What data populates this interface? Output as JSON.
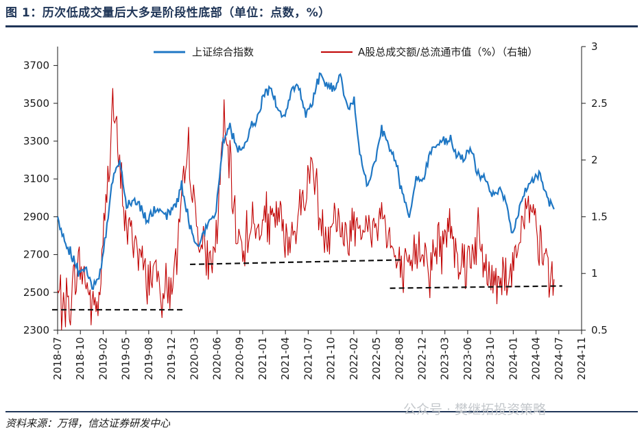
{
  "figure": {
    "title": "图 1：历次低成交量后大多是阶段性底部（单位：点数，%）",
    "source": "资料来源：万得，信达证券研发中心",
    "watermark": "公众号 · 樊继拓投资策略"
  },
  "chart_data": {
    "type": "line",
    "title": "",
    "xlabel": "",
    "ylabel": "",
    "legend_placement": "top",
    "grid": false,
    "x_tick_labels": [
      "2018-07",
      "2018-10",
      "2019-02",
      "2019-05",
      "2019-08",
      "2019-12",
      "2020-03",
      "2020-06",
      "2020-09",
      "2021-01",
      "2021-04",
      "2021-07",
      "2021-10",
      "2022-02",
      "2022-05",
      "2022-08",
      "2022-12",
      "2023-03",
      "2023-06",
      "2023-10",
      "2024-01",
      "2024-04",
      "2024-07",
      "2024-11"
    ],
    "y_left_ticks": [
      2300,
      2500,
      2700,
      2900,
      3100,
      3300,
      3500,
      3700
    ],
    "y_right_ticks": [
      "0.5",
      "1",
      "1.5",
      "2",
      "2.5",
      "3"
    ],
    "y_left_range": [
      2300,
      3800
    ],
    "y_right_range": [
      0.5,
      3.0
    ],
    "series": [
      {
        "name": "上证综合指数",
        "axis": "left",
        "color": "#1f77c4",
        "x": [
          "2018-07",
          "2018-08",
          "2018-09",
          "2018-10",
          "2018-11",
          "2018-12",
          "2019-01",
          "2019-02",
          "2019-03",
          "2019-04",
          "2019-05",
          "2019-06",
          "2019-07",
          "2019-08",
          "2019-09",
          "2019-10",
          "2019-11",
          "2019-12",
          "2020-01",
          "2020-02",
          "2020-03",
          "2020-04",
          "2020-05",
          "2020-06",
          "2020-07",
          "2020-08",
          "2020-09",
          "2020-10",
          "2020-11",
          "2020-12",
          "2021-01",
          "2021-02",
          "2021-03",
          "2021-04",
          "2021-05",
          "2021-06",
          "2021-07",
          "2021-08",
          "2021-09",
          "2021-10",
          "2021-11",
          "2021-12",
          "2022-01",
          "2022-02",
          "2022-03",
          "2022-04",
          "2022-05",
          "2022-06",
          "2022-07",
          "2022-08",
          "2022-09",
          "2022-10",
          "2022-11",
          "2022-12",
          "2023-01",
          "2023-02",
          "2023-03",
          "2023-04",
          "2023-05",
          "2023-06",
          "2023-07",
          "2023-08",
          "2023-09",
          "2023-10",
          "2023-11",
          "2023-12",
          "2024-01",
          "2024-02",
          "2024-03",
          "2024-04",
          "2024-05",
          "2024-06",
          "2024-07"
        ],
        "values": [
          2880,
          2770,
          2700,
          2610,
          2620,
          2530,
          2590,
          2800,
          3110,
          3200,
          2960,
          2990,
          2960,
          2880,
          2940,
          2920,
          2900,
          2960,
          3060,
          2880,
          2750,
          2800,
          2860,
          2930,
          3300,
          3390,
          3250,
          3240,
          3380,
          3420,
          3560,
          3580,
          3460,
          3440,
          3590,
          3580,
          3440,
          3520,
          3650,
          3600,
          3570,
          3640,
          3470,
          3500,
          3200,
          3050,
          3180,
          3380,
          3260,
          3210,
          3020,
          2910,
          3100,
          3090,
          3240,
          3280,
          3290,
          3300,
          3220,
          3210,
          3250,
          3120,
          3110,
          3020,
          3040,
          2980,
          2800,
          2940,
          3040,
          3100,
          3120,
          3000,
          2940
        ]
      },
      {
        "name": "A股总成交额/总流通市值（%）（右轴）",
        "axis": "right",
        "color": "#c00000",
        "x": [
          "2018-07",
          "2018-08",
          "2018-09",
          "2018-10",
          "2018-11",
          "2018-12",
          "2019-01",
          "2019-02",
          "2019-03",
          "2019-04",
          "2019-05",
          "2019-06",
          "2019-07",
          "2019-08",
          "2019-09",
          "2019-10",
          "2019-11",
          "2019-12",
          "2020-01",
          "2020-02",
          "2020-03",
          "2020-04",
          "2020-05",
          "2020-06",
          "2020-07",
          "2020-08",
          "2020-09",
          "2020-10",
          "2020-11",
          "2020-12",
          "2021-01",
          "2021-02",
          "2021-03",
          "2021-04",
          "2021-05",
          "2021-06",
          "2021-07",
          "2021-08",
          "2021-09",
          "2021-10",
          "2021-11",
          "2021-12",
          "2022-01",
          "2022-02",
          "2022-03",
          "2022-04",
          "2022-05",
          "2022-06",
          "2022-07",
          "2022-08",
          "2022-09",
          "2022-10",
          "2022-11",
          "2022-12",
          "2023-01",
          "2023-02",
          "2023-03",
          "2023-04",
          "2023-05",
          "2023-06",
          "2023-07",
          "2023-08",
          "2023-09",
          "2023-10",
          "2023-11",
          "2023-12",
          "2024-01",
          "2024-02",
          "2024-03",
          "2024-04",
          "2024-05",
          "2024-06",
          "2024-07"
        ],
        "values": [
          0.82,
          0.72,
          0.78,
          1.1,
          0.95,
          0.72,
          0.74,
          1.6,
          2.5,
          1.9,
          1.4,
          1.35,
          1.15,
          0.95,
          1.05,
          0.88,
          0.85,
          1.0,
          1.55,
          2.1,
          1.45,
          1.2,
          1.05,
          1.25,
          2.3,
          1.9,
          1.35,
          1.25,
          1.45,
          1.35,
          1.5,
          1.4,
          1.55,
          1.25,
          1.35,
          1.5,
          1.75,
          2.0,
          1.5,
          1.35,
          1.5,
          1.45,
          1.25,
          1.5,
          1.45,
          1.35,
          1.4,
          1.55,
          1.35,
          1.1,
          0.98,
          1.0,
          1.2,
          1.25,
          1.05,
          1.25,
          1.25,
          1.45,
          1.2,
          1.1,
          1.2,
          1.3,
          1.05,
          0.95,
          1.0,
          0.98,
          1.05,
          1.35,
          1.55,
          1.45,
          1.2,
          1.1,
          0.95
        ]
      }
    ],
    "annotations": [
      {
        "type": "dashed-line",
        "axis": "right",
        "x": [
          "2018-07",
          "2019-12"
        ],
        "y": [
          0.68,
          0.68
        ]
      },
      {
        "type": "dashed-line",
        "axis": "right",
        "x": [
          "2020-03",
          "2022-08"
        ],
        "y": [
          1.08,
          1.12
        ]
      },
      {
        "type": "dashed-line",
        "axis": "right",
        "x": [
          "2022-08",
          "2024-07"
        ],
        "y": [
          0.87,
          0.89
        ]
      }
    ]
  }
}
